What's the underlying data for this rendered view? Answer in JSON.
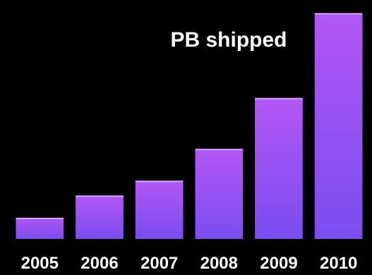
{
  "chart_data": {
    "type": "bar",
    "title": "PB shipped",
    "categories": [
      "2005",
      "2006",
      "2007",
      "2008",
      "2009",
      "2010"
    ],
    "values": [
      2,
      4.1,
      5.5,
      8.5,
      13.3,
      21.3
    ],
    "xlabel": "",
    "ylabel": "",
    "ylim": [
      0,
      22
    ],
    "grid": false,
    "legend": "none",
    "colors": {
      "background": "#000000",
      "bar_top": "#b356f5",
      "bar_bottom": "#7a4df0",
      "bar_highlight": "#d9a6ff",
      "text": "#ffffff"
    }
  }
}
